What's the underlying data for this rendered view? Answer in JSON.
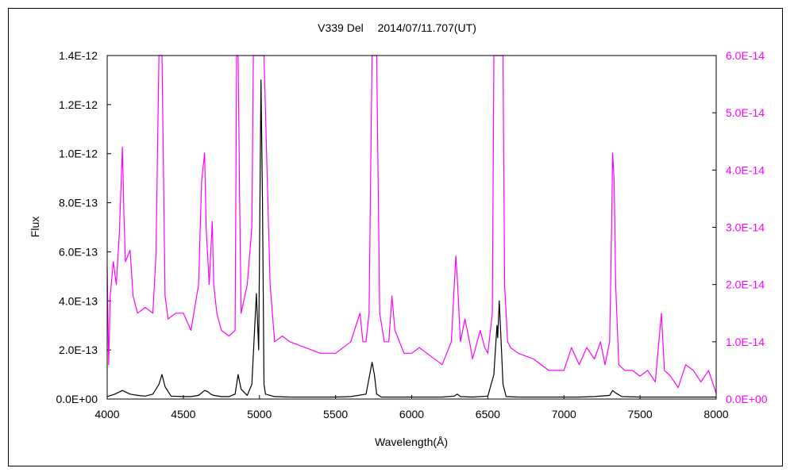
{
  "chart_data": {
    "type": "line",
    "title": "V339 Del　 2014/07/11.707(UT)",
    "xlabel": "Wavelength(Å)",
    "ylabel": "Flux",
    "xlim": [
      4000,
      8000
    ],
    "ylim_left": [
      0,
      1.4e-12
    ],
    "ylim_right": [
      0,
      6e-14
    ],
    "x_ticks": [
      "4000",
      "4500",
      "5000",
      "5500",
      "6000",
      "6500",
      "7000",
      "7500",
      "8000"
    ],
    "y_left_ticks": [
      "0.0E+00",
      "2.0E-13",
      "4.0E-13",
      "6.0E-13",
      "8.0E-13",
      "1.0E-12",
      "1.2E-12",
      "1.4E-12"
    ],
    "y_right_ticks": [
      "0.0E+00",
      "1.0E-14",
      "2.0E-14",
      "3.0E-14",
      "4.0E-14",
      "5.0E-14",
      "6.0E-14"
    ],
    "colors": {
      "left_series": "#000000",
      "right_series": "#ff00ff",
      "axis": "#000000"
    },
    "series": [
      {
        "axis": "left",
        "x": [
          4000,
          4050,
          4100,
          4150,
          4200,
          4250,
          4300,
          4340,
          4360,
          4380,
          4420,
          4500,
          4550,
          4600,
          4640,
          4660,
          4680,
          4700,
          4750,
          4800,
          4840,
          4860,
          4880,
          4920,
          4950,
          4980,
          4995,
          5010,
          5020,
          5030,
          5040,
          5100,
          5200,
          5300,
          5400,
          5500,
          5600,
          5700,
          5740,
          5755,
          5770,
          5800,
          5900,
          6000,
          6100,
          6200,
          6280,
          6300,
          6320,
          6400,
          6500,
          6540,
          6560,
          6565,
          6575,
          6590,
          6600,
          6620,
          6700,
          6800,
          6900,
          7000,
          7100,
          7200,
          7300,
          7320,
          7340,
          7380,
          7500,
          7700,
          8000
        ],
        "y": [
          1e-14,
          2e-14,
          3.5e-14,
          2e-14,
          1.5e-14,
          1.2e-14,
          2e-14,
          6e-14,
          1e-13,
          5e-14,
          1.2e-14,
          1e-14,
          1e-14,
          1.5e-14,
          3.5e-14,
          3e-14,
          2e-14,
          1.5e-14,
          1e-14,
          1e-14,
          2e-14,
          1e-13,
          4e-14,
          1.5e-14,
          6e-14,
          4.3e-13,
          2e-13,
          1.3e-12,
          8e-13,
          6e-14,
          2e-14,
          1e-14,
          8e-15,
          8e-15,
          8e-15,
          8e-15,
          1e-14,
          2e-14,
          1.5e-13,
          1e-13,
          2e-14,
          8e-15,
          8e-15,
          8e-15,
          8e-15,
          8e-15,
          1.2e-14,
          2e-14,
          1e-14,
          8e-15,
          1.2e-14,
          1e-13,
          3e-13,
          2.5e-13,
          4e-13,
          2e-13,
          6e-14,
          1e-14,
          8e-15,
          8e-15,
          8e-15,
          8e-15,
          8e-15,
          1e-14,
          1.5e-14,
          3.5e-14,
          2.5e-14,
          1e-14,
          8e-15,
          8e-15,
          8e-15
        ]
      },
      {
        "axis": "right",
        "x": [
          4000,
          4010,
          4020,
          4040,
          4060,
          4080,
          4100,
          4110,
          4120,
          4150,
          4170,
          4200,
          4250,
          4300,
          4320,
          4340,
          4350,
          4360,
          4380,
          4400,
          4450,
          4500,
          4550,
          4600,
          4620,
          4640,
          4650,
          4670,
          4690,
          4700,
          4720,
          4750,
          4800,
          4840,
          4850,
          4860,
          4870,
          4880,
          4920,
          4950,
          4960,
          4980,
          5000,
          5010,
          5020,
          5030,
          5050,
          5070,
          5100,
          5150,
          5200,
          5300,
          5400,
          5500,
          5600,
          5660,
          5680,
          5700,
          5720,
          5740,
          5750,
          5760,
          5770,
          5790,
          5820,
          5850,
          5870,
          5890,
          5950,
          6000,
          6050,
          6100,
          6200,
          6260,
          6290,
          6300,
          6320,
          6350,
          6380,
          6400,
          6450,
          6480,
          6500,
          6530,
          6540,
          6550,
          6570,
          6590,
          6600,
          6610,
          6630,
          6650,
          6700,
          6800,
          6900,
          7000,
          7050,
          7100,
          7150,
          7200,
          7240,
          7270,
          7300,
          7310,
          7320,
          7330,
          7340,
          7360,
          7400,
          7450,
          7500,
          7550,
          7600,
          7640,
          7660,
          7700,
          7750,
          7800,
          7850,
          7900,
          7950,
          8000
        ],
        "y": [
          2.3e-14,
          6e-15,
          1.8e-14,
          2.4e-14,
          2e-14,
          2.9e-14,
          4.4e-14,
          3.2e-14,
          2.4e-14,
          2.6e-14,
          1.8e-14,
          1.5e-14,
          1.6e-14,
          1.5e-14,
          2.5e-14,
          6e-14,
          6e-14,
          6e-14,
          1.8e-14,
          1.4e-14,
          1.5e-14,
          1.5e-14,
          1.2e-14,
          2e-14,
          3.8e-14,
          4.3e-14,
          3e-14,
          2e-14,
          3.1e-14,
          2e-14,
          1.5e-14,
          1.2e-14,
          1.1e-14,
          1.2e-14,
          6e-14,
          6e-14,
          3.5e-14,
          1.5e-14,
          2e-14,
          3e-14,
          6e-14,
          6e-14,
          6e-14,
          6e-14,
          6e-14,
          6e-14,
          4e-14,
          2e-14,
          1e-14,
          1.1e-14,
          1e-14,
          9e-15,
          8e-15,
          8e-15,
          1e-14,
          1.5e-14,
          1e-14,
          1e-14,
          1.5e-14,
          6e-14,
          6e-14,
          6e-14,
          6e-14,
          1.5e-14,
          1e-14,
          1e-14,
          1.8e-14,
          1.2e-14,
          8e-15,
          8e-15,
          9e-15,
          8e-15,
          6e-15,
          1e-14,
          2.5e-14,
          2.1e-14,
          1e-14,
          1.4e-14,
          1e-14,
          7e-15,
          1.2e-14,
          9e-15,
          8e-15,
          1.5e-14,
          6e-14,
          6e-14,
          6e-14,
          6e-14,
          6e-14,
          2e-14,
          1e-14,
          9e-15,
          8e-15,
          7e-15,
          5e-15,
          5e-15,
          9e-15,
          6e-15,
          9e-15,
          7e-15,
          1e-14,
          6e-15,
          1e-14,
          2.5e-14,
          4.3e-14,
          3.8e-14,
          2e-14,
          6e-15,
          5e-15,
          5e-15,
          4e-15,
          5e-15,
          3e-15,
          1.5e-14,
          5e-15,
          4e-15,
          2e-15,
          6e-15,
          5e-15,
          3e-15,
          5e-15,
          1e-15
        ]
      }
    ]
  }
}
